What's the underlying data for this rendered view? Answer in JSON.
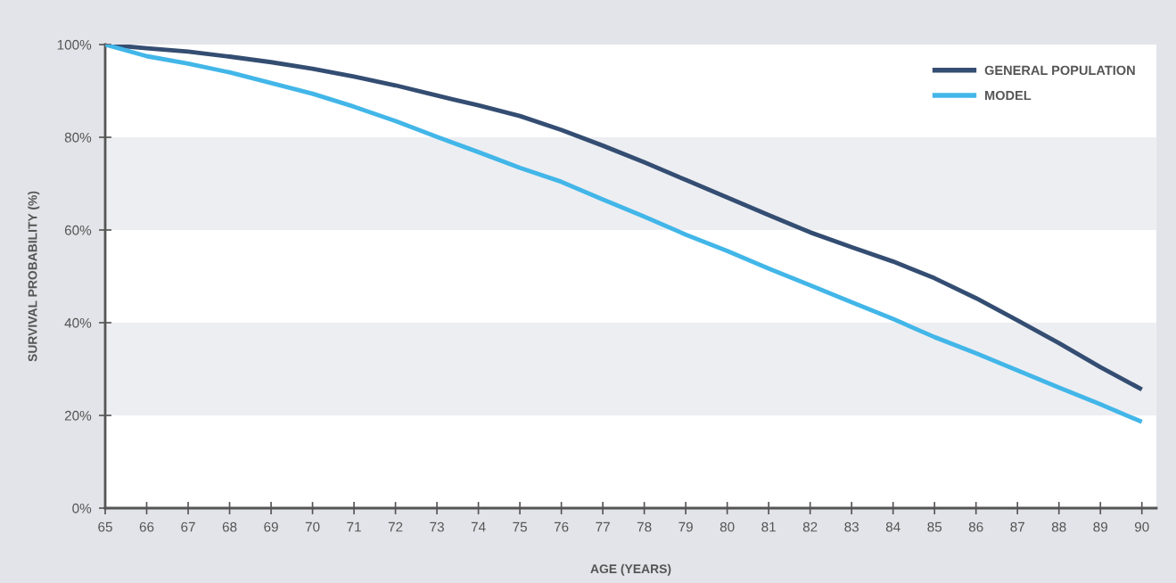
{
  "chart_data": {
    "type": "line",
    "xlabel": "AGE (YEARS)",
    "ylabel": "SURVIVAL PROBABILITY (%)",
    "x": [
      65,
      66,
      67,
      68,
      69,
      70,
      71,
      72,
      73,
      74,
      75,
      76,
      77,
      78,
      79,
      80,
      81,
      82,
      83,
      84,
      85,
      86,
      87,
      88,
      89,
      90
    ],
    "series": [
      {
        "name": "GENERAL POPULATION",
        "color": "#344d72",
        "values": [
          100,
          99.2,
          98.5,
          97.4,
          96.2,
          94.8,
          93.1,
          91.2,
          89,
          86.9,
          84.6,
          81.6,
          78.2,
          74.6,
          70.8,
          67,
          63.2,
          59.5,
          56.3,
          53.2,
          49.6,
          45.3,
          40.5,
          35.6,
          30.4,
          25.6
        ]
      },
      {
        "name": "MODEL",
        "color": "#42b6e8",
        "values": [
          100,
          97.5,
          95.9,
          94,
          91.7,
          89.4,
          86.6,
          83.5,
          80.1,
          76.8,
          73.4,
          70.4,
          66.6,
          62.9,
          59,
          55.5,
          51.7,
          48.1,
          44.4,
          40.8,
          36.9,
          33.4,
          29.7,
          26,
          22.4,
          18.6
        ]
      }
    ],
    "xlim": [
      65,
      90.35
    ],
    "xticks": [
      65,
      66,
      67,
      68,
      69,
      70,
      71,
      72,
      73,
      74,
      75,
      76,
      77,
      78,
      79,
      80,
      81,
      82,
      83,
      84,
      85,
      86,
      87,
      88,
      89,
      90
    ],
    "ylim": [
      0,
      100
    ],
    "yticks": [
      {
        "value": 0,
        "label": "0%"
      },
      {
        "value": 20,
        "label": "20%"
      },
      {
        "value": 40,
        "label": "40%"
      },
      {
        "value": 60,
        "label": "60%"
      },
      {
        "value": 80,
        "label": "80%"
      },
      {
        "value": 100,
        "label": "100%"
      }
    ],
    "bands": [
      {
        "axis": "y",
        "from": 20,
        "to": 40,
        "color": "#edeef2"
      },
      {
        "axis": "y",
        "from": 60,
        "to": 80,
        "color": "#edeef2"
      }
    ],
    "grid": false,
    "legend": "top right",
    "marker": "none",
    "line_style": "solid"
  }
}
